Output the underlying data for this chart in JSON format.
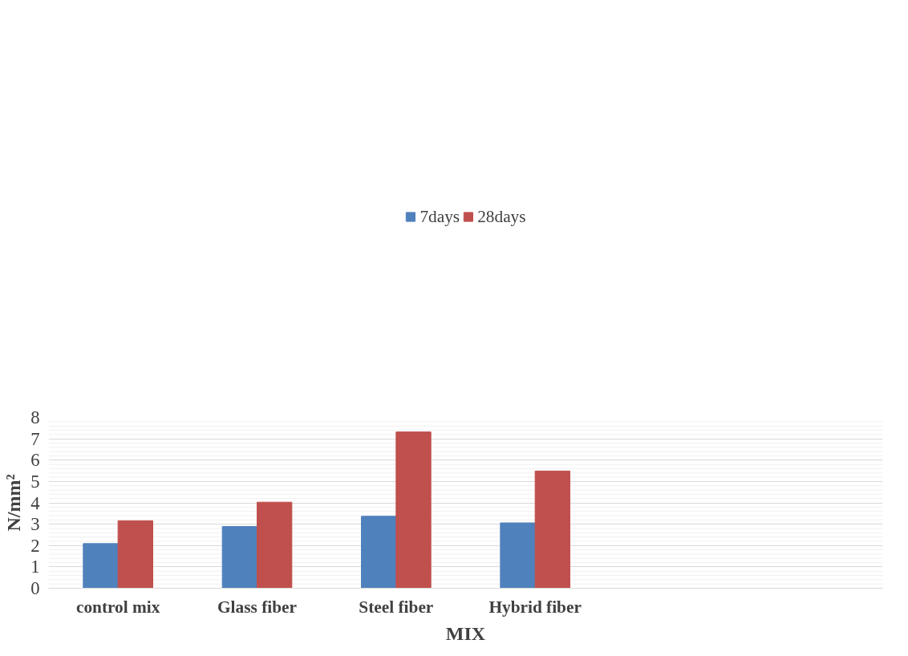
{
  "chart_data": {
    "type": "bar",
    "xlabel": "MIX",
    "ylabel": "N/mm²",
    "categories": [
      "control mix",
      "Glass fiber",
      "Steel fiber",
      "Hybrid fiber",
      null,
      null
    ],
    "series": [
      {
        "name": "7days",
        "color": "#4f81bd",
        "values": [
          2.09,
          2.89,
          3.37,
          3.06,
          null,
          null
        ]
      },
      {
        "name": "28days",
        "color": "#c0504d",
        "values": [
          3.16,
          4.03,
          7.32,
          5.49,
          null,
          null
        ]
      }
    ],
    "ylim": [
      0,
      8
    ],
    "yticks": [
      0,
      {
        "value": 0.2,
        "label": null
      },
      {
        "value": 0.4,
        "label": null
      },
      {
        "value": 0.6,
        "label": null
      },
      {
        "value": 0.8,
        "label": null
      },
      1,
      {
        "value": 1.2,
        "label": null
      },
      {
        "value": 1.4,
        "label": null
      },
      {
        "value": 1.6,
        "label": null
      },
      {
        "value": 1.8,
        "label": null
      },
      2,
      {
        "value": 2.2,
        "label": null
      },
      {
        "value": 2.4,
        "label": null
      },
      {
        "value": 2.6,
        "label": null
      },
      {
        "value": 2.8,
        "label": null
      },
      3,
      {
        "value": 3.2,
        "label": null
      },
      {
        "value": 3.4,
        "label": null
      },
      {
        "value": 3.6,
        "label": null
      },
      {
        "value": 3.8,
        "label": null
      },
      4,
      {
        "value": 4.2,
        "label": null
      },
      {
        "value": 4.4,
        "label": null
      },
      {
        "value": 4.6,
        "label": null
      },
      {
        "value": 4.8,
        "label": null
      },
      5,
      {
        "value": 5.2,
        "label": null
      },
      {
        "value": 5.4,
        "label": null
      },
      {
        "value": 5.6,
        "label": null
      },
      {
        "value": 5.8,
        "label": null
      },
      6,
      {
        "value": 6.2,
        "label": null
      },
      {
        "value": 6.4,
        "label": null
      },
      {
        "value": 6.6,
        "label": null
      },
      {
        "value": 6.8,
        "label": null
      },
      7,
      {
        "value": 7.2,
        "label": null
      },
      {
        "value": 7.4,
        "label": null
      },
      {
        "value": 7.6,
        "label": null
      },
      {
        "value": 7.8,
        "label": null
      },
      8
    ],
    "grid": "y",
    "legend": "top"
  }
}
